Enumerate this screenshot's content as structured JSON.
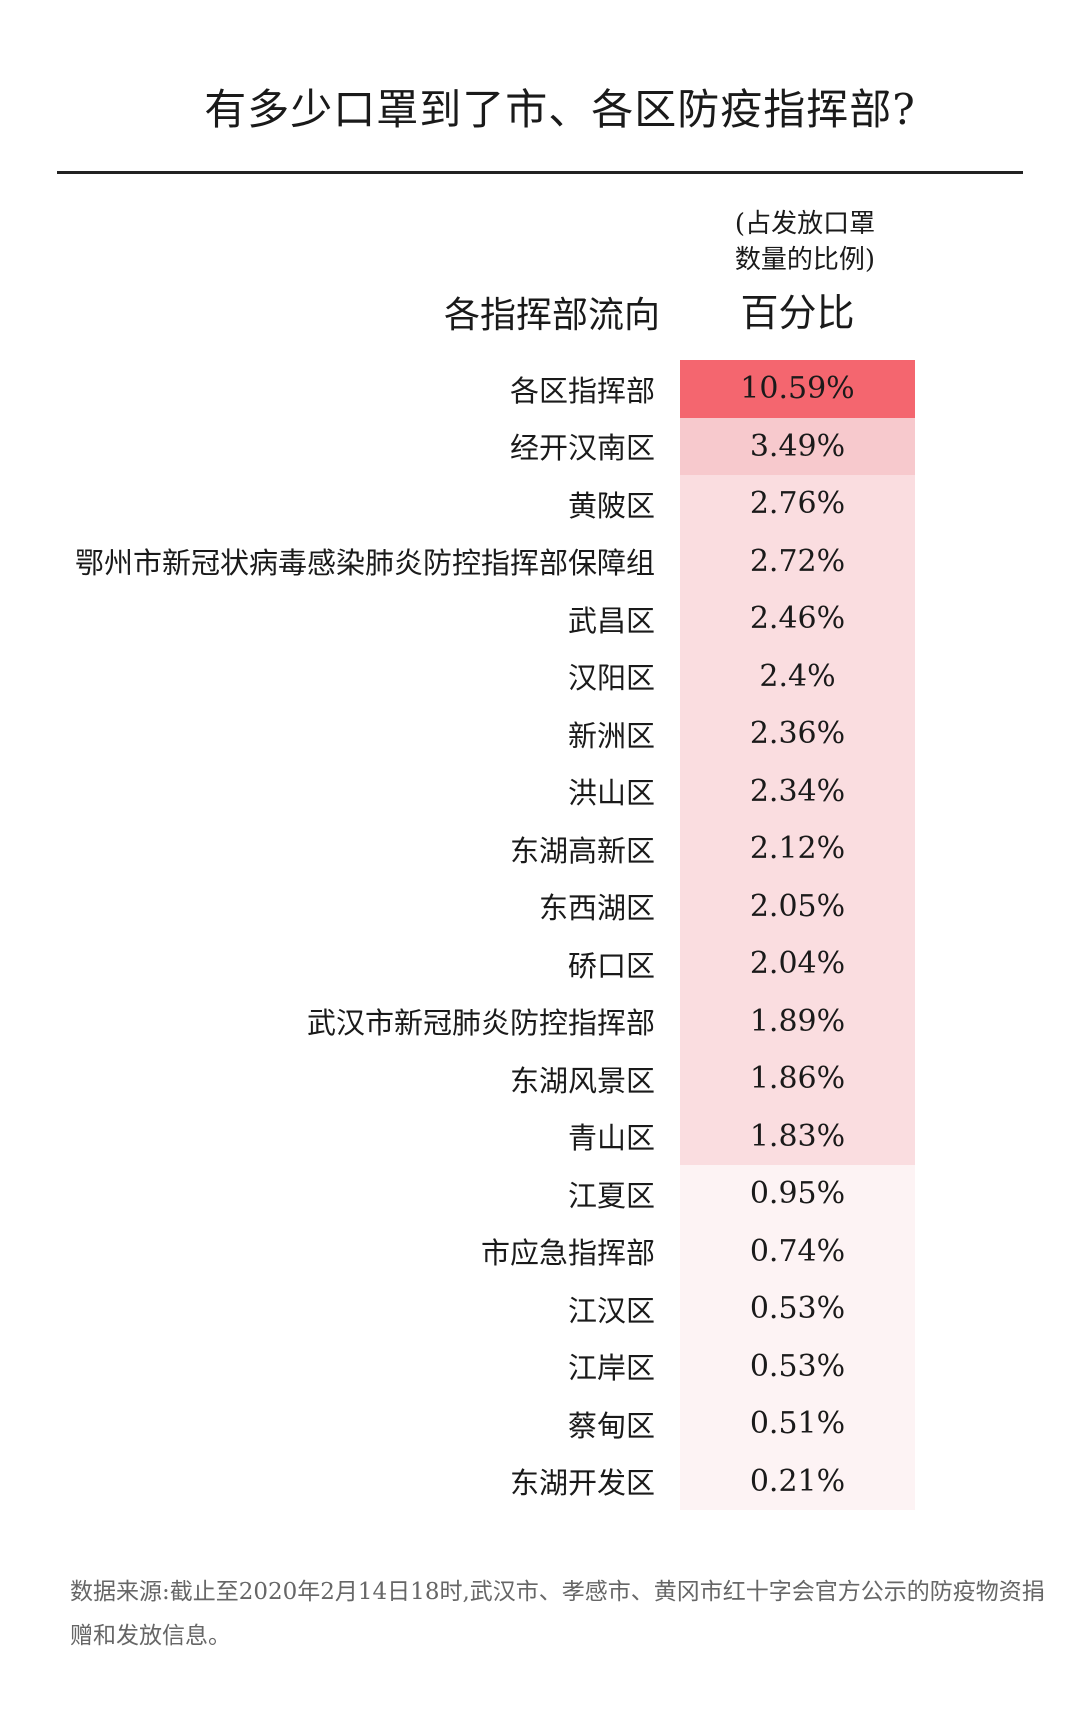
{
  "title": "有多少口罩到了市、各区防疫指挥部?",
  "columns": {
    "label_header": "各指挥部流向",
    "value_header": "百分比",
    "value_note_line1": "(占发放口罩",
    "value_note_line2": "数量的比例)"
  },
  "chart_data": {
    "type": "table",
    "title": "有多少口罩到了市、各区防疫指挥部?",
    "unit": "%",
    "rows": [
      {
        "label": "各区指挥部",
        "value": 10.59,
        "display": "10.59%"
      },
      {
        "label": "经开汉南区",
        "value": 3.49,
        "display": "3.49%"
      },
      {
        "label": "黄陂区",
        "value": 2.76,
        "display": "2.76%"
      },
      {
        "label": "鄂州市新冠状病毒感染肺炎防控指挥部保障组",
        "value": 2.72,
        "display": "2.72%"
      },
      {
        "label": "武昌区",
        "value": 2.46,
        "display": "2.46%"
      },
      {
        "label": "汉阳区",
        "value": 2.4,
        "display": "2.4%"
      },
      {
        "label": "新洲区",
        "value": 2.36,
        "display": "2.36%"
      },
      {
        "label": "洪山区",
        "value": 2.34,
        "display": "2.34%"
      },
      {
        "label": "东湖高新区",
        "value": 2.12,
        "display": "2.12%"
      },
      {
        "label": "东西湖区",
        "value": 2.05,
        "display": "2.05%"
      },
      {
        "label": "硚口区",
        "value": 2.04,
        "display": "2.04%"
      },
      {
        "label": "武汉市新冠肺炎防控指挥部",
        "value": 1.89,
        "display": "1.89%"
      },
      {
        "label": "东湖风景区",
        "value": 1.86,
        "display": "1.86%"
      },
      {
        "label": "青山区",
        "value": 1.83,
        "display": "1.83%"
      },
      {
        "label": "江夏区",
        "value": 0.95,
        "display": "0.95%"
      },
      {
        "label": "市应急指挥部",
        "value": 0.74,
        "display": "0.74%"
      },
      {
        "label": "江汉区",
        "value": 0.53,
        "display": "0.53%"
      },
      {
        "label": "江岸区",
        "value": 0.53,
        "display": "0.53%"
      },
      {
        "label": "蔡甸区",
        "value": 0.51,
        "display": "0.51%"
      },
      {
        "label": "东湖开发区",
        "value": 0.21,
        "display": "0.21%"
      }
    ],
    "colors": {
      "max": "#f4666f",
      "high": "#f7c9cd",
      "mid": "#fadde0",
      "low": "#fdf3f4"
    }
  },
  "source": "数据来源:截止至2020年2月14日18时,武汉市、孝感市、黄冈市红十字会官方公示的防疫物资捐赠和发放信息。"
}
